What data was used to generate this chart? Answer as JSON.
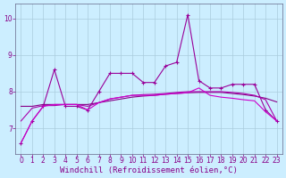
{
  "x": [
    0,
    1,
    2,
    3,
    4,
    5,
    6,
    7,
    8,
    9,
    10,
    11,
    12,
    13,
    14,
    15,
    16,
    17,
    18,
    19,
    20,
    21,
    22,
    23
  ],
  "lines": [
    {
      "y": [
        6.6,
        7.2,
        7.6,
        8.6,
        7.6,
        7.6,
        7.5,
        8.0,
        8.5,
        8.5,
        8.5,
        8.25,
        8.25,
        8.7,
        8.8,
        10.1,
        8.3,
        8.1,
        8.1,
        8.2,
        8.2,
        8.2,
        7.5,
        7.2
      ],
      "color": "#990099",
      "linewidth": 0.8,
      "marker": "+",
      "markersize": 3
    },
    {
      "y": [
        7.6,
        7.6,
        7.65,
        7.65,
        7.65,
        7.65,
        7.65,
        7.7,
        7.75,
        7.8,
        7.85,
        7.88,
        7.9,
        7.93,
        7.95,
        7.97,
        7.98,
        7.98,
        7.98,
        7.95,
        7.92,
        7.88,
        7.82,
        7.72
      ],
      "color": "#880088",
      "linewidth": 0.8,
      "marker": null
    },
    {
      "y": [
        7.2,
        7.55,
        7.62,
        7.62,
        7.65,
        7.65,
        7.6,
        7.7,
        7.8,
        7.85,
        7.9,
        7.92,
        7.93,
        7.95,
        7.98,
        8.0,
        8.0,
        8.0,
        8.0,
        7.98,
        7.95,
        7.9,
        7.78,
        7.2
      ],
      "color": "#aa00aa",
      "linewidth": 0.8,
      "marker": null
    },
    {
      "y": [
        6.6,
        7.2,
        7.6,
        7.65,
        7.65,
        7.65,
        7.5,
        7.7,
        7.8,
        7.85,
        7.9,
        7.9,
        7.9,
        7.93,
        7.95,
        7.97,
        8.1,
        7.9,
        7.85,
        7.82,
        7.78,
        7.75,
        7.45,
        7.2
      ],
      "color": "#cc00cc",
      "linewidth": 0.8,
      "marker": null
    }
  ],
  "xlabel": "Windchill (Refroidissement éolien,°C)",
  "xlim": [
    -0.5,
    23.5
  ],
  "ylim": [
    6.3,
    10.4
  ],
  "yticks": [
    7,
    8,
    9,
    10
  ],
  "xticks": [
    0,
    1,
    2,
    3,
    4,
    5,
    6,
    7,
    8,
    9,
    10,
    11,
    12,
    13,
    14,
    15,
    16,
    17,
    18,
    19,
    20,
    21,
    22,
    23
  ],
  "bg_color": "#cceeff",
  "grid_color": "#aaccdd",
  "text_color": "#880088",
  "tick_fontsize": 5.5,
  "xlabel_fontsize": 6.5
}
